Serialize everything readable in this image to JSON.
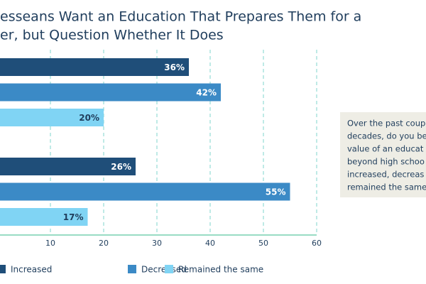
{
  "chart_data": {
    "type": "bar",
    "orientation": "horizontal",
    "title": [
      "esseans Want an Education That Prepares Them for a",
      "er, but Question Whether It Does"
    ],
    "categories": [
      null,
      null
    ],
    "series": [
      {
        "name": "Increased",
        "color": "#1f4e79",
        "values": [
          36,
          26
        ],
        "value_labels": [
          "36%",
          "26%"
        ]
      },
      {
        "name": "Decreased",
        "color": "#3b8ac6",
        "values": [
          42,
          55
        ],
        "value_labels": [
          "42%",
          "55%"
        ]
      },
      {
        "name": "Remained the same",
        "color": "#80d4f4",
        "values": [
          20,
          17
        ],
        "value_labels": [
          "20%",
          "17%"
        ]
      }
    ],
    "xlim": [
      0,
      60
    ],
    "xticks": [
      10,
      20,
      30,
      40,
      50,
      60
    ],
    "grid": true,
    "annotation": [
      "Over the past coup",
      "decades, do you be",
      "value of an educat",
      "beyond high schoo",
      "increased, decreas",
      "remained the same"
    ]
  }
}
